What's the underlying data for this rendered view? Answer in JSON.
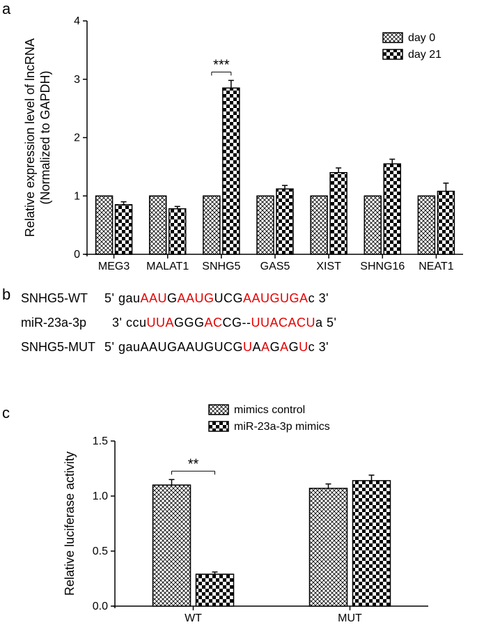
{
  "panel_a": {
    "label": "a",
    "type": "bar",
    "y_axis_label": "Relative expression level of lncRNA\n(Normalized to GAPDH)",
    "categories": [
      "MEG3",
      "MALAT1",
      "SNHG5",
      "GAS5",
      "XIST",
      "SHNG16",
      "NEAT1"
    ],
    "series": [
      {
        "name": "day 0",
        "pattern": "crosshatch-light",
        "values": [
          1.0,
          1.0,
          1.0,
          1.0,
          1.0,
          1.0,
          1.0
        ],
        "errors": [
          0,
          0,
          0,
          0,
          0,
          0,
          0
        ]
      },
      {
        "name": "day 21",
        "pattern": "checker",
        "values": [
          0.85,
          0.78,
          2.85,
          1.12,
          1.4,
          1.55,
          1.08
        ],
        "errors": [
          0.05,
          0.04,
          0.13,
          0.06,
          0.08,
          0.08,
          0.14
        ]
      }
    ],
    "ylim": [
      0,
      4
    ],
    "yticks": [
      0,
      1,
      2,
      3,
      4
    ],
    "significance": {
      "group_index": 2,
      "label": "***"
    },
    "colors": {
      "axis": "#000",
      "bar_stroke": "#000",
      "background": "#ffffff"
    },
    "fontsize": {
      "axis_label": 18,
      "tick": 16,
      "legend": 16,
      "sig": 20
    }
  },
  "panel_b": {
    "label": "b",
    "type": "sequence",
    "sequences": [
      {
        "label": "SNHG5-WT",
        "prefix": "5' ",
        "suffix": "c 3'",
        "parts": [
          {
            "t": "gau",
            "c": "k"
          },
          {
            "t": "AAU",
            "c": "r"
          },
          {
            "t": "G",
            "c": "k"
          },
          {
            "t": "AA",
            "c": "r"
          },
          {
            "t": "UG",
            "c": "r"
          },
          {
            "t": "UCG",
            "c": "k"
          },
          {
            "t": "AAUGUGA",
            "c": "r"
          }
        ]
      },
      {
        "label": "miR-23a-3p",
        "prefix": "3' ",
        "suffix": "a 5'",
        "parts": [
          {
            "t": "ccu",
            "c": "k"
          },
          {
            "t": "UUA",
            "c": "r"
          },
          {
            "t": "GGG",
            "c": "k"
          },
          {
            "t": "AC",
            "c": "r"
          },
          {
            "t": "CG",
            "c": "k"
          },
          {
            "t": "--",
            "c": "k"
          },
          {
            "t": "UUACACU",
            "c": "r"
          }
        ]
      },
      {
        "label": "SNHG5-MUT",
        "prefix": "5' ",
        "suffix": "c 3'",
        "parts": [
          {
            "t": "gau",
            "c": "k"
          },
          {
            "t": "AAUGAAUGUCG",
            "c": "k"
          },
          {
            "t": "U",
            "c": "r"
          },
          {
            "t": "A",
            "c": "k"
          },
          {
            "t": "A",
            "c": "r"
          },
          {
            "t": "G",
            "c": "k"
          },
          {
            "t": "A",
            "c": "r"
          },
          {
            "t": "G",
            "c": "k"
          },
          {
            "t": "U",
            "c": "r"
          }
        ]
      }
    ]
  },
  "panel_c": {
    "label": "c",
    "type": "bar",
    "y_axis_label": "Relative luciferase activity",
    "categories": [
      "WT",
      "MUT"
    ],
    "series": [
      {
        "name": "mimics control",
        "pattern": "crosshatch-light",
        "values": [
          1.1,
          1.07
        ],
        "errors": [
          0.05,
          0.04
        ]
      },
      {
        "name": "miR-23a-3p mimics",
        "pattern": "checker",
        "values": [
          0.29,
          1.14
        ],
        "errors": [
          0.02,
          0.05
        ]
      }
    ],
    "ylim": [
      0.0,
      1.5
    ],
    "yticks": [
      0.0,
      0.5,
      1.0,
      1.5
    ],
    "significance": {
      "group_index": 0,
      "label": "**"
    },
    "colors": {
      "axis": "#000",
      "bar_stroke": "#000",
      "background": "#ffffff"
    },
    "fontsize": {
      "axis_label": 18,
      "tick": 16,
      "legend": 16,
      "sig": 20
    }
  }
}
